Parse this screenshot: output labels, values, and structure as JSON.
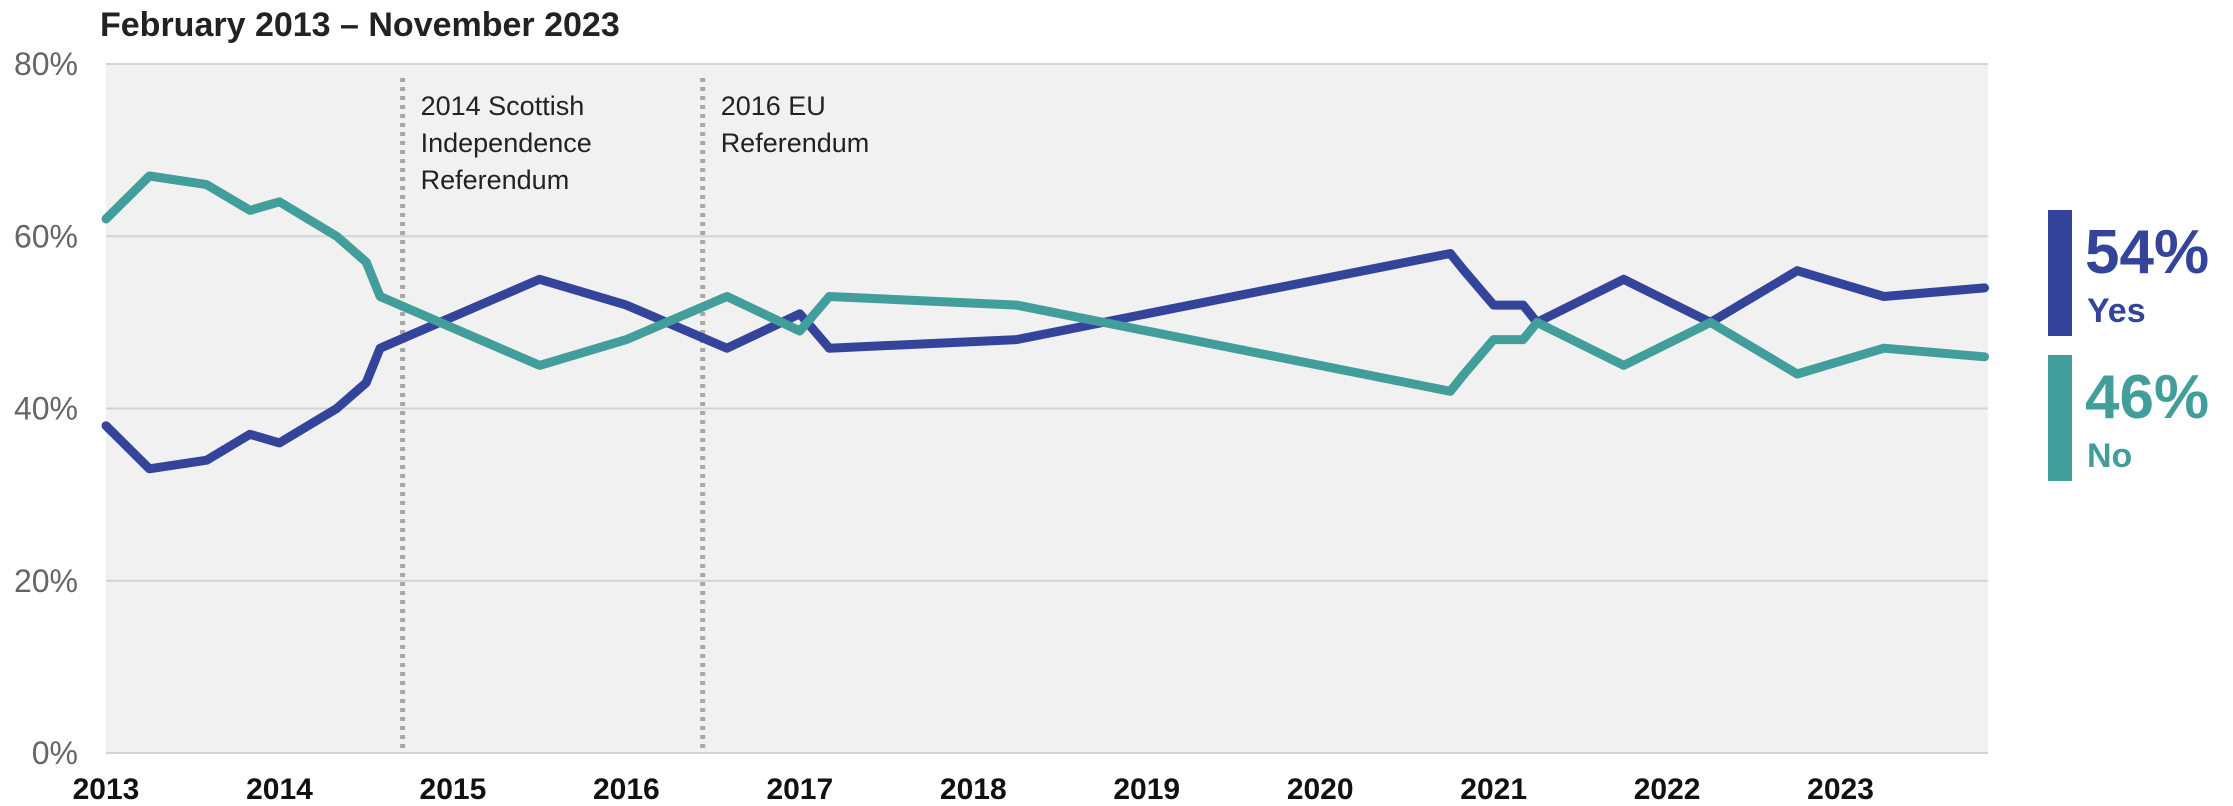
{
  "chart_data": {
    "type": "line",
    "title": "February 2013 – November 2023",
    "ylim": [
      0,
      80
    ],
    "y_ticks": [
      "0%",
      "20%",
      "40%",
      "60%",
      "80%"
    ],
    "y_tick_values": [
      0,
      20,
      40,
      60,
      80
    ],
    "x_ticks": [
      "2013",
      "2014",
      "2015",
      "2016",
      "2017",
      "2018",
      "2019",
      "2020",
      "2021",
      "2022",
      "2023"
    ],
    "x_tick_values": [
      2013,
      2014,
      2015,
      2016,
      2017,
      2018,
      2019,
      2020,
      2021,
      2022,
      2023
    ],
    "xlim": [
      2013,
      2023.85
    ],
    "grid": true,
    "series": [
      {
        "name": "Yes",
        "color": "#34449a",
        "latest": "54%",
        "points": [
          [
            2013.0,
            38
          ],
          [
            2013.25,
            33
          ],
          [
            2013.58,
            34
          ],
          [
            2013.83,
            37
          ],
          [
            2014.0,
            36
          ],
          [
            2014.33,
            40
          ],
          [
            2014.5,
            43
          ],
          [
            2014.58,
            47
          ],
          [
            2015.5,
            55
          ],
          [
            2016.0,
            52
          ],
          [
            2016.58,
            47
          ],
          [
            2017.0,
            51
          ],
          [
            2017.17,
            47
          ],
          [
            2018.25,
            48
          ],
          [
            2020.75,
            58
          ],
          [
            2020.83,
            56
          ],
          [
            2021.0,
            52
          ],
          [
            2021.17,
            52
          ],
          [
            2021.25,
            50
          ],
          [
            2021.75,
            55
          ],
          [
            2022.25,
            50
          ],
          [
            2022.75,
            56
          ],
          [
            2023.25,
            53
          ],
          [
            2023.83,
            54
          ]
        ]
      },
      {
        "name": "No",
        "color": "#429e9b",
        "latest": "46%",
        "points": [
          [
            2013.0,
            62
          ],
          [
            2013.25,
            67
          ],
          [
            2013.58,
            66
          ],
          [
            2013.83,
            63
          ],
          [
            2014.0,
            64
          ],
          [
            2014.33,
            60
          ],
          [
            2014.5,
            57
          ],
          [
            2014.58,
            53
          ],
          [
            2015.5,
            45
          ],
          [
            2016.0,
            48
          ],
          [
            2016.58,
            53
          ],
          [
            2017.0,
            49
          ],
          [
            2017.17,
            53
          ],
          [
            2018.25,
            52
          ],
          [
            2020.75,
            42
          ],
          [
            2020.83,
            44
          ],
          [
            2021.0,
            48
          ],
          [
            2021.17,
            48
          ],
          [
            2021.25,
            50
          ],
          [
            2021.75,
            45
          ],
          [
            2022.25,
            50
          ],
          [
            2022.75,
            44
          ],
          [
            2023.25,
            47
          ],
          [
            2023.83,
            46
          ]
        ]
      }
    ],
    "annotations": [
      {
        "x": 2014.71,
        "lines": [
          "2014 Scottish",
          "Independence",
          "Referendum"
        ]
      },
      {
        "x": 2016.44,
        "lines": [
          "2016 EU",
          "Referendum"
        ]
      }
    ]
  }
}
